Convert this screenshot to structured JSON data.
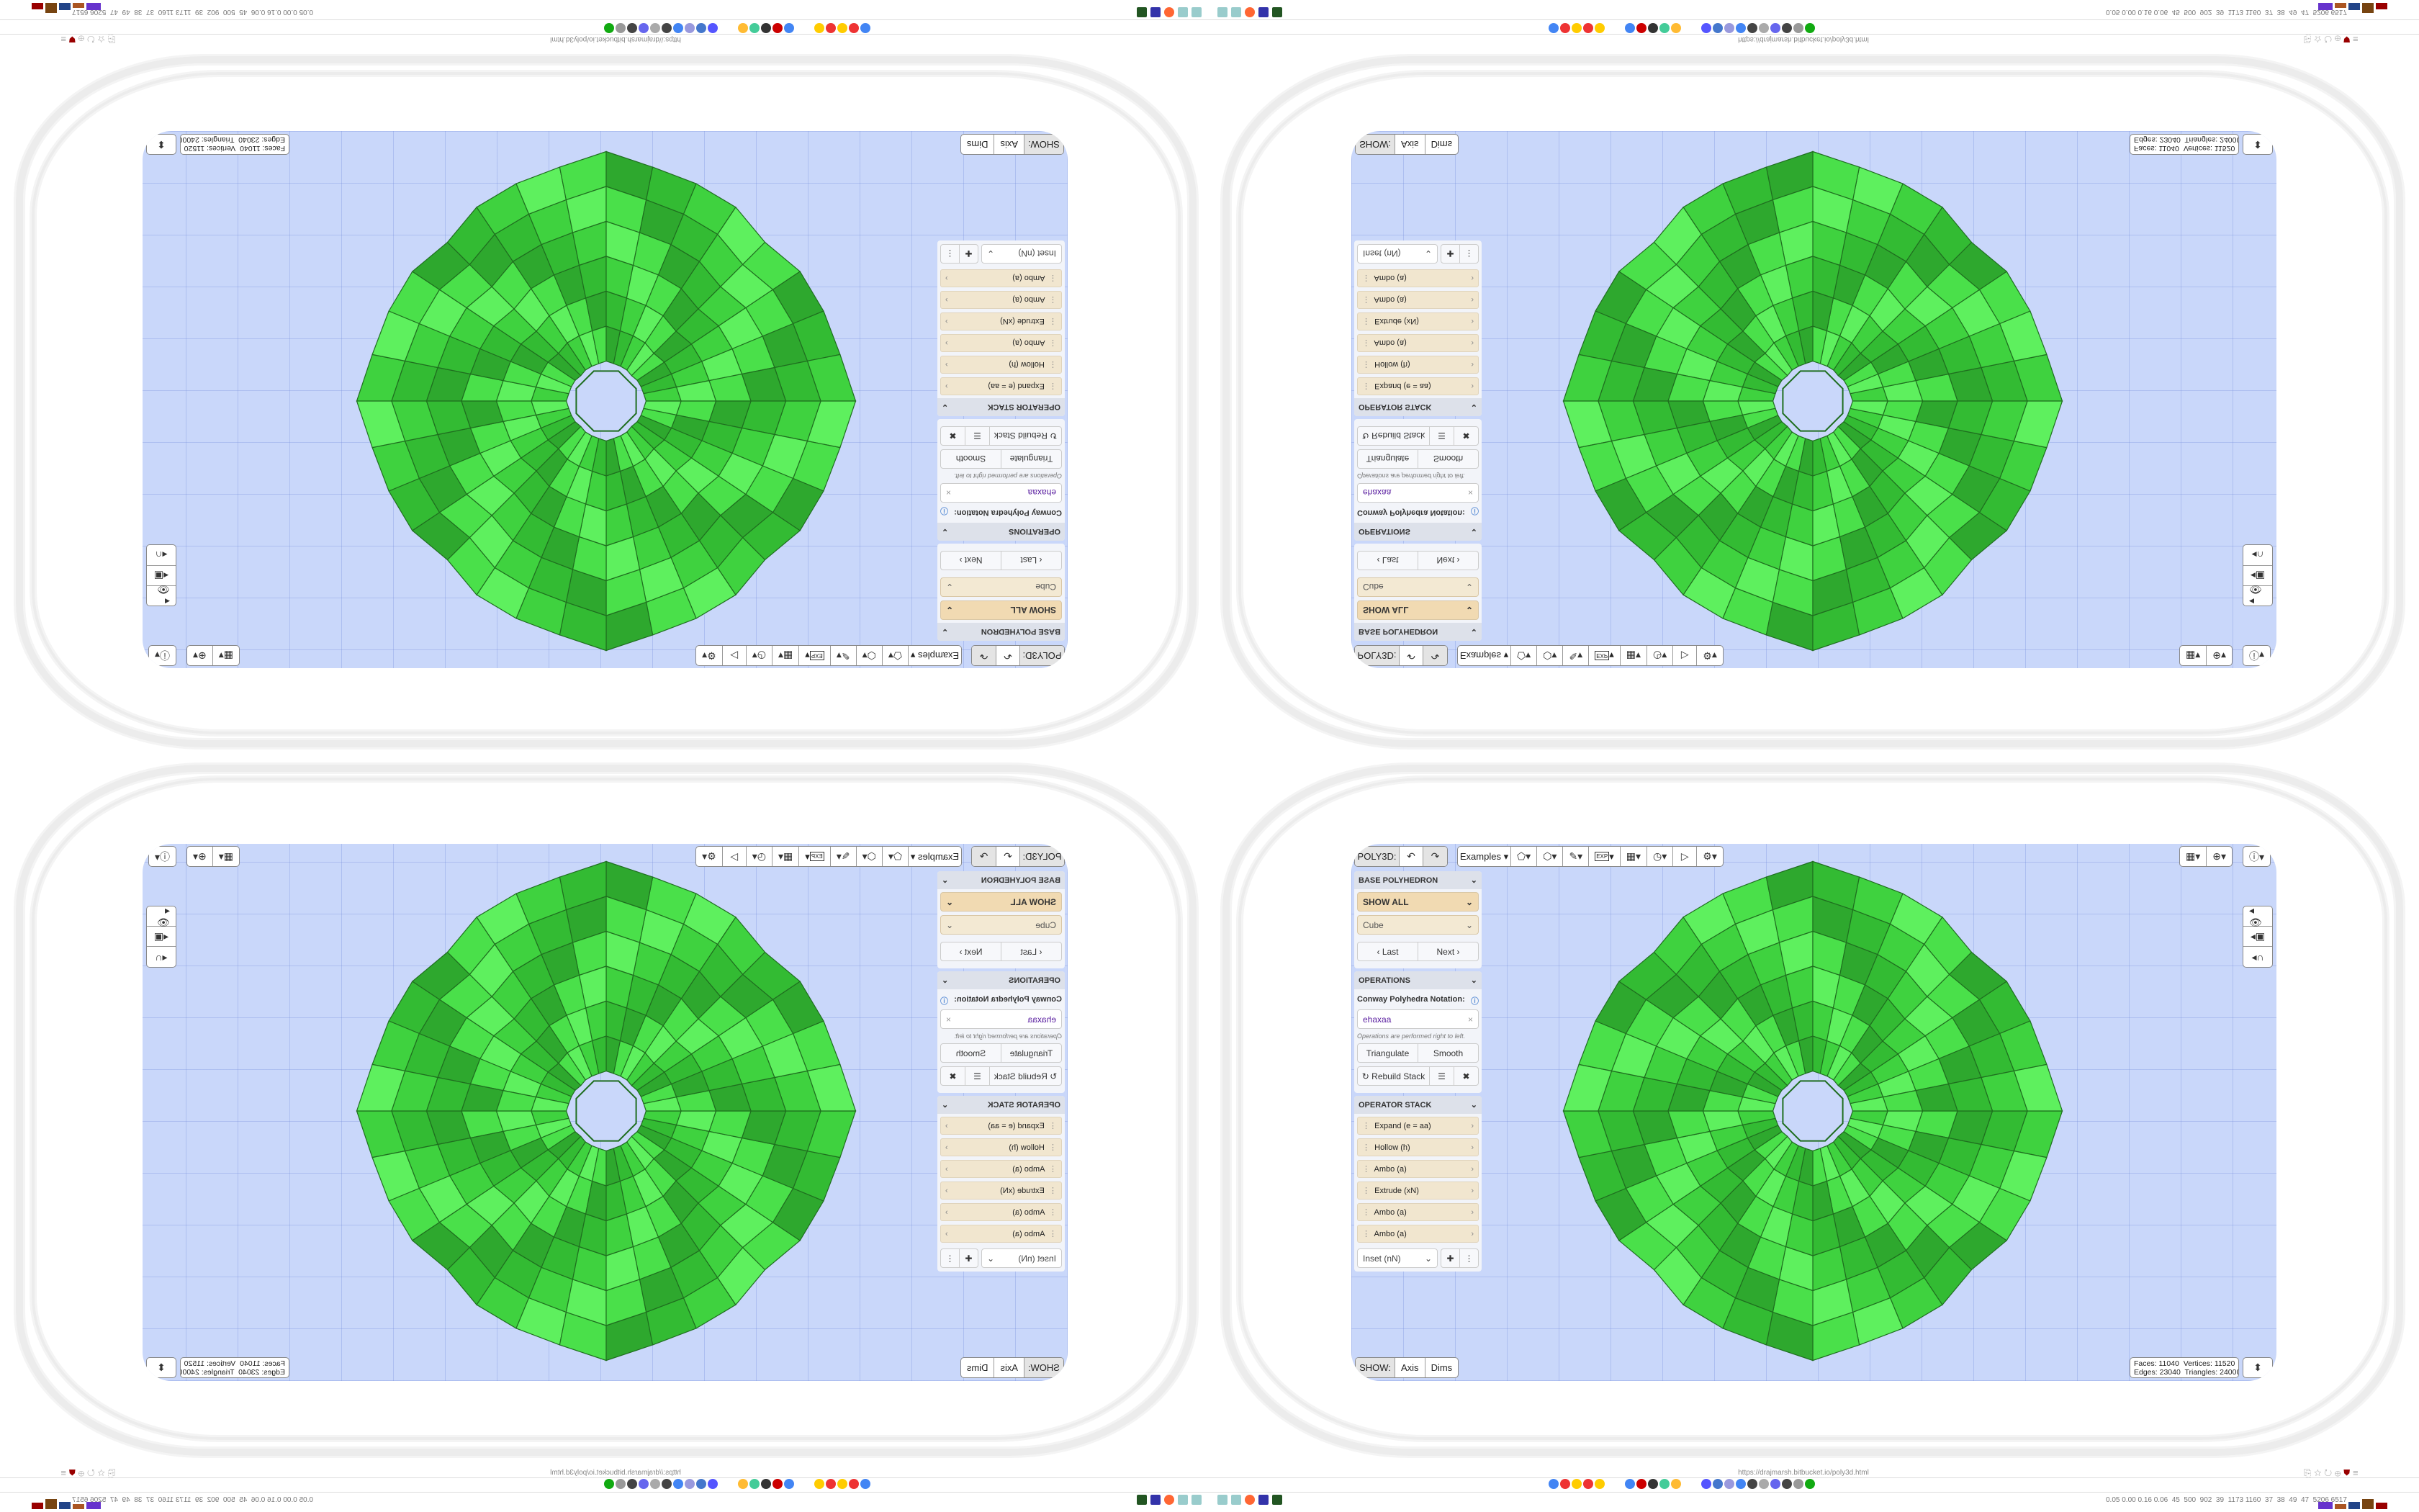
{
  "toolbar": {
    "app_label": "POLY3D:",
    "undo_icon": "undo-icon",
    "redo_icon": "redo-icon",
    "examples_label": "Examples",
    "tools": [
      "paint-bucket-icon",
      "cube-play-icon",
      "pencil-ruler-icon",
      "export-icon",
      "calendar-icon",
      "clock-icon",
      "play-icon",
      "gear-icon"
    ],
    "export_text": "EXP"
  },
  "right_toolbar": {
    "tools": [
      "calendar-clock-icon",
      "globe-icon",
      "info-icon"
    ],
    "side": [
      "eye-icon",
      "toggle-icon",
      "magnet-icon"
    ]
  },
  "panel": {
    "base": {
      "title": "BASE POLYHEDRON",
      "filter": "SHOW ALL",
      "shape": "Cube",
      "last": "Last",
      "next": "Next"
    },
    "operations": {
      "title": "OPERATIONS",
      "notation_label": "Conway Polyhedra Notation:",
      "notation_value": "ehaxaa",
      "hint": "Operations are performed right to left.",
      "triangulate": "Triangulate",
      "smooth": "Smooth",
      "rebuild": "Rebuild Stack"
    },
    "stack": {
      "title": "OPERATOR STACK",
      "items": [
        "Expand (e = aa)",
        "Hollow (h)",
        "Ambo (a)",
        "Extrude (xN)",
        "Ambo (a)",
        "Ambo (a)"
      ],
      "add_select": "Inset (nN)"
    }
  },
  "show": {
    "label": "SHOW:",
    "axis": "Axis",
    "dims": "Dims"
  },
  "stats": {
    "faces_label": "Faces:",
    "faces": "11040",
    "vertices_label": "Vertices:",
    "vertices": "11520",
    "edges_label": "Edges:",
    "edges": "23040",
    "triangles_label": "Triangles:",
    "triangles": "24000"
  },
  "colors": {
    "polyhedron": "#3fd23f",
    "edge": "#1f6e1f",
    "viewport": "#c9d7fa",
    "operator": "#f1e6cf",
    "notation": "#5a1fa0"
  },
  "browser": {
    "url": "https://drajmarsh.bitbucket.io/poly3d.html",
    "status": "0.05 0.00 0.16 0.06  45  500  902  39  1173 1160  37  38  49  47  5206 6517"
  }
}
